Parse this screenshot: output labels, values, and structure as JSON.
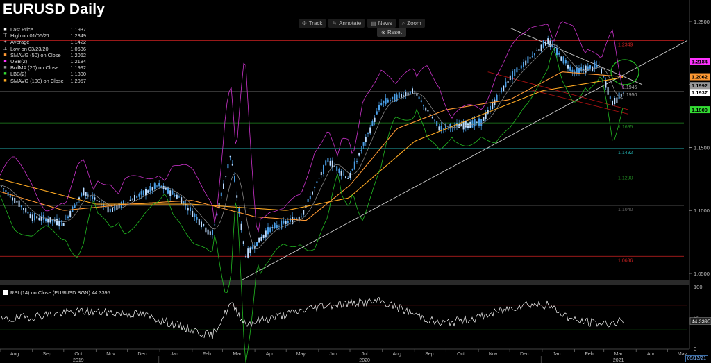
{
  "title": "EURUSD Daily",
  "toolbar": {
    "buttons": [
      {
        "icon": "crosshair-icon",
        "glyph": "✣",
        "label": "Track"
      },
      {
        "icon": "pencil-icon",
        "glyph": "✎",
        "label": "Annotate"
      },
      {
        "icon": "news-icon",
        "glyph": "▤",
        "label": "News"
      },
      {
        "icon": "magnifier-icon",
        "glyph": "⌕",
        "label": "Zoom"
      }
    ],
    "reset": {
      "icon": "reset-icon",
      "glyph": "⊗",
      "label": "Reset"
    }
  },
  "legend": [
    {
      "symbol": "■",
      "color": "#ffffff",
      "label": "Last Price",
      "value": "1.1937"
    },
    {
      "symbol": "⊤",
      "color": "#dddddd",
      "label": "High on 01/06/21",
      "value": "1.2349"
    },
    {
      "symbol": "+",
      "color": "#dddddd",
      "label": "Average",
      "value": "1.1422"
    },
    {
      "symbol": "⊥",
      "color": "#dddddd",
      "label": "Low on 03/23/20",
      "value": "1.0636"
    },
    {
      "symbol": "■",
      "color": "#ff9933",
      "label": "SMAVG (50)  on Close",
      "value": "1.2062"
    },
    {
      "symbol": "■",
      "color": "#ff33ff",
      "label": "UBB(2)",
      "value": "1.2184"
    },
    {
      "symbol": "■",
      "color": "#999999",
      "label": "BollMA (20)  on Close",
      "value": "1.1992"
    },
    {
      "symbol": "■",
      "color": "#33dd33",
      "label": "LBB(2)",
      "value": "1.1800"
    },
    {
      "symbol": "■",
      "color": "#ffaa22",
      "label": "SMAVG (100)  on Close",
      "value": "1.2057"
    }
  ],
  "rsi_legend": {
    "label": "RSI (14)   on Close (EURUSD BGN)",
    "value": "44.3395"
  },
  "date_stamp": "05/13/21",
  "colors": {
    "background": "#000000",
    "candle": "#4a9fe8",
    "sma50": "#ff9933",
    "sma100": "#ffaa22",
    "ubb": "#cc33cc",
    "lbb": "#22bb22",
    "bollma": "#888888",
    "rsi": "#ffffff",
    "rsi_over": "#ff5555",
    "rsi_under": "#33cc33",
    "high_line": "#cc2222",
    "low_line": "#cc2222",
    "fib_teal": "#22aaaa",
    "fib_green": "#228822",
    "fib_grey": "#666666"
  },
  "chart_data": [
    {
      "type": "line",
      "title": "EURUSD Daily",
      "x": [
        "2019-08",
        "2019-09",
        "2019-10",
        "2019-11",
        "2019-12",
        "2020-01",
        "2020-02",
        "2020-03",
        "2020-04",
        "2020-05",
        "2020-06",
        "2020-07",
        "2020-08",
        "2020-09",
        "2020-10",
        "2020-11",
        "2020-12",
        "2021-01",
        "2021-02",
        "2021-03",
        "2021-04",
        "2021-05"
      ],
      "x_tick_labels": [
        "Aug",
        "Sep",
        "Oct",
        "Nov",
        "Dec",
        "Jan",
        "Feb",
        "Mar",
        "Apr",
        "May",
        "Jun",
        "Jul",
        "Aug",
        "Sep",
        "Oct",
        "Nov",
        "Dec",
        "Jan",
        "Feb",
        "Mar",
        "Apr",
        "May"
      ],
      "year_labels": [
        {
          "year": "2019",
          "at": "2019-10"
        },
        {
          "year": "2020",
          "at": "2020-07"
        },
        {
          "year": "2021",
          "at": "2021-03"
        }
      ],
      "ylim": [
        1.045,
        1.255
      ],
      "y_ticks": [
        "1.2500",
        "1.2000",
        "1.1500",
        "1.1000",
        "1.0500"
      ],
      "series": [
        {
          "name": "Last Price",
          "x": [
            "2019-08-01",
            "2019-09-01",
            "2019-10-01",
            "2019-10-20",
            "2019-11-15",
            "2019-12-31",
            "2020-01-20",
            "2020-02-20",
            "2020-03-09",
            "2020-03-23",
            "2020-04-15",
            "2020-05-15",
            "2020-06-10",
            "2020-06-30",
            "2020-07-31",
            "2020-08-31",
            "2020-09-25",
            "2020-11-04",
            "2020-12-01",
            "2021-01-06",
            "2021-01-31",
            "2021-02-25",
            "2021-03-09",
            "2021-03-20"
          ],
          "values": [
            1.12,
            1.095,
            1.09,
            1.115,
            1.1,
            1.12,
            1.11,
            1.08,
            1.145,
            1.064,
            1.085,
            1.095,
            1.14,
            1.125,
            1.185,
            1.195,
            1.165,
            1.17,
            1.205,
            1.2349,
            1.21,
            1.215,
            1.185,
            1.1937
          ]
        },
        {
          "name": "SMAVG (50)  on Close",
          "x": [
            "2019-08-01",
            "2019-10-01",
            "2019-12-01",
            "2020-02-01",
            "2020-04-01",
            "2020-05-20",
            "2020-07-01",
            "2020-08-15",
            "2020-10-01",
            "2020-12-01",
            "2021-01-20",
            "2021-03-20"
          ],
          "values": [
            1.115,
            1.1,
            1.105,
            1.108,
            1.095,
            1.092,
            1.12,
            1.165,
            1.18,
            1.188,
            1.21,
            1.2062
          ]
        },
        {
          "name": "SMAVG (100)  on Close",
          "x": [
            "2019-08-01",
            "2019-11-01",
            "2020-02-01",
            "2020-05-01",
            "2020-06-30",
            "2020-09-01",
            "2020-11-01",
            "2021-01-01",
            "2021-03-20"
          ],
          "values": [
            1.125,
            1.105,
            1.105,
            1.1,
            1.11,
            1.155,
            1.175,
            1.195,
            1.2057
          ]
        },
        {
          "name": "UBB(2)",
          "x": [
            "2020-03-01",
            "2021-03-20"
          ],
          "values": [
            1.15,
            1.2184
          ]
        },
        {
          "name": "LBB(2)",
          "x": [
            "2020-03-01",
            "2021-03-20"
          ],
          "values": [
            1.065,
            1.18
          ]
        },
        {
          "name": "BollMA (20)  on Close",
          "x": [
            "2020-03-01",
            "2021-03-20"
          ],
          "values": [
            1.1,
            1.1992
          ]
        }
      ],
      "price_labels": [
        {
          "value": "1.2184",
          "color": "#ff33ff"
        },
        {
          "value": "1.2062",
          "color": "#ff9933"
        },
        {
          "value": "1.1992",
          "color": "#999999"
        },
        {
          "value": "1.1937",
          "color": "#ffffff"
        },
        {
          "value": "1.1800",
          "color": "#33dd33"
        }
      ],
      "near_price_text": [
        "1.1945",
        "1.1950"
      ],
      "horizontal_levels": [
        {
          "value": 1.2349,
          "label": "1.2349",
          "color": "#cc2222"
        },
        {
          "value": 1.1945,
          "label": "",
          "color": "#555555"
        },
        {
          "value": 1.1695,
          "label": "1.1695",
          "color": "#228822"
        },
        {
          "value": 1.1492,
          "label": "1.1492",
          "color": "#22aaaa"
        },
        {
          "value": 1.129,
          "label": "1.1290",
          "color": "#228822"
        },
        {
          "value": 1.104,
          "label": "1.1040",
          "color": "#666666"
        },
        {
          "value": 1.0636,
          "label": "1.0636",
          "color": "#cc2222"
        }
      ]
    },
    {
      "type": "line",
      "title": "RSI (14)   on Close (EURUSD BGN)",
      "ylim": [
        0,
        100
      ],
      "y_ticks": [
        "100",
        "50",
        "0"
      ],
      "last_value": "44.3395",
      "levels": [
        70,
        30
      ],
      "series": [
        {
          "name": "RSI (14)   on Close (EURUSD BGN)",
          "x": [
            "2019-08-01",
            "2019-09-15",
            "2019-10-20",
            "2019-12-15",
            "2020-02-20",
            "2020-03-09",
            "2020-03-23",
            "2020-05-01",
            "2020-06-05",
            "2020-07-31",
            "2020-09-25",
            "2020-11-01",
            "2020-12-15",
            "2021-01-06",
            "2021-02-01",
            "2021-03-01",
            "2021-03-20"
          ],
          "values": [
            45,
            55,
            60,
            55,
            20,
            73,
            40,
            55,
            70,
            76,
            40,
            50,
            72,
            70,
            45,
            40,
            44.3395
          ]
        }
      ]
    }
  ]
}
